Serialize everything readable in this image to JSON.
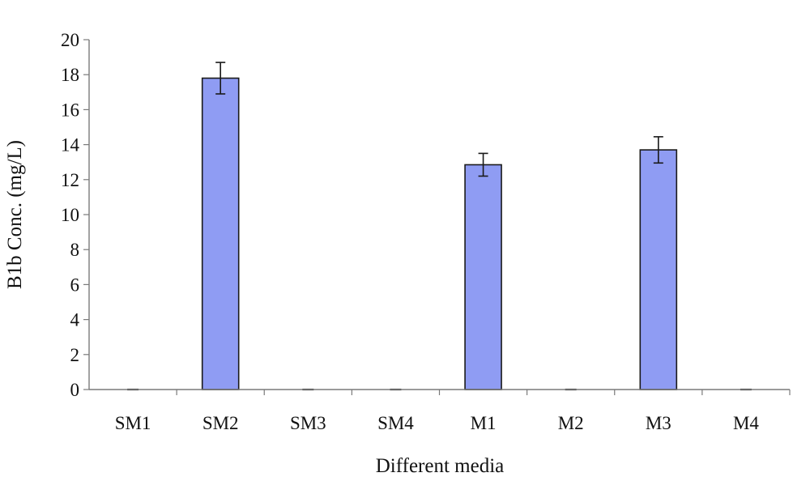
{
  "chart_data": {
    "type": "bar",
    "title": "",
    "xlabel": "Different media",
    "ylabel": "B1b Conc. (mg/L)",
    "categories": [
      "SM1",
      "SM2",
      "SM3",
      "SM4",
      "M1",
      "M2",
      "M3",
      "M4"
    ],
    "values": [
      0,
      17.8,
      0,
      0,
      12.85,
      0,
      13.7,
      0
    ],
    "error": [
      0,
      0.9,
      0,
      0,
      0.65,
      0,
      0.75,
      0
    ],
    "ylim": [
      0,
      20
    ],
    "yticks": [
      0,
      2,
      4,
      6,
      8,
      10,
      12,
      14,
      16,
      18,
      20
    ],
    "grid": false,
    "legend": "none",
    "colors": {
      "bar_fill": "#8f9cf3",
      "bar_stroke": "#1a1a1a",
      "axis": "#7a7a7a",
      "error_bar": "#1a1a1a"
    }
  }
}
